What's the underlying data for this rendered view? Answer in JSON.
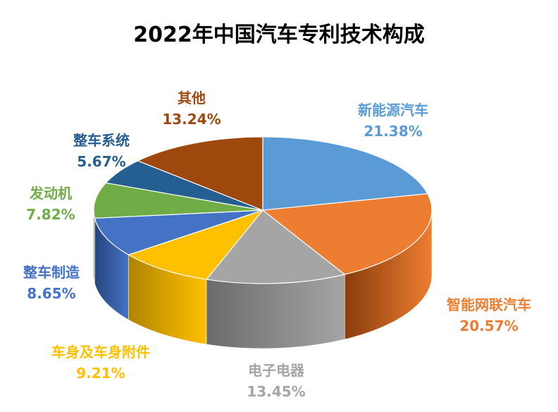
{
  "chart_data": {
    "type": "pie",
    "title": "2022年中国汽车专利技术构成",
    "slices": [
      {
        "label": "新能源汽车",
        "value": 21.38,
        "value_label": "21.38%",
        "color": "#5b9bd5",
        "dark": "#2e6aa6"
      },
      {
        "label": "智能网联汽车",
        "value": 20.57,
        "value_label": "20.57%",
        "color": "#ed7d31",
        "dark": "#8a3d0d"
      },
      {
        "label": "电子电器",
        "value": 13.45,
        "value_label": "13.45%",
        "color": "#a5a5a5",
        "dark": "#6b6b6b"
      },
      {
        "label": "车身及车身附件",
        "value": 9.21,
        "value_label": "9.21%",
        "color": "#ffc000",
        "dark": "#b08400"
      },
      {
        "label": "整车制造",
        "value": 8.65,
        "value_label": "8.65%",
        "color": "#4472c4",
        "dark": "#26457f"
      },
      {
        "label": "发动机",
        "value": 7.82,
        "value_label": "7.82%",
        "color": "#70ad47",
        "dark": "#447029"
      },
      {
        "label": "整车系统",
        "value": 5.67,
        "value_label": "5.67%",
        "color": "#255e91",
        "dark": "#143755"
      },
      {
        "label": "其他",
        "value": 13.24,
        "value_label": "13.24%",
        "color": "#9e480e",
        "dark": "#5c2908"
      }
    ],
    "label_colors": [
      "#5b9bd5",
      "#ed7d31",
      "#a5a5a5",
      "#ffc000",
      "#4472c4",
      "#70ad47",
      "#255e91",
      "#9e480e"
    ]
  }
}
